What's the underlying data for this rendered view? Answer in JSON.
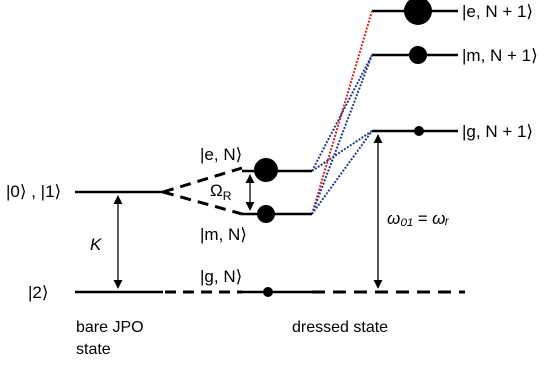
{
  "labels": {
    "bare_levels": "|0⟩ , |1⟩",
    "ground_level": "|2⟩",
    "kerr": "K",
    "rabi": "Ω",
    "rabi_sub": "R",
    "e_N": "|e, N⟩",
    "m_N": "|m, N⟩",
    "g_N": "|g, N⟩",
    "e_N1": "|e, N + 1⟩",
    "m_N1": "|m, N + 1⟩",
    "g_N1": "|g, N + 1⟩",
    "resonance": "ω₀₁ = ωᵣ"
  },
  "captions": {
    "bare_line1": "bare JPO",
    "bare_line2": "state",
    "dressed": "dressed state"
  },
  "colors": {
    "level": "#000000",
    "red_transition": "#e8201c",
    "blue_transition": "#1e3f8c"
  }
}
